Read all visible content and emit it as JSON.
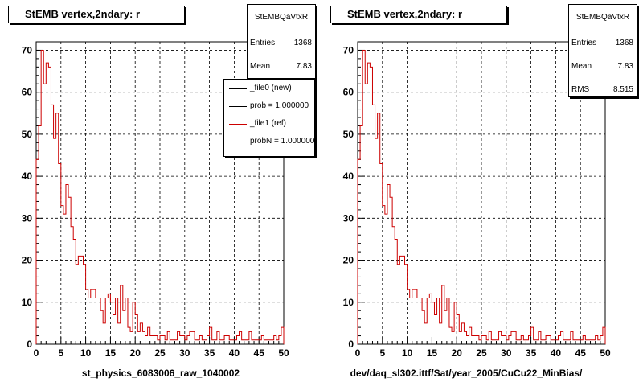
{
  "chart_data": [
    {
      "type": "histogram",
      "title": "StEMB  vertex,2ndary: r",
      "xlabel": "st_physics_6083006_raw_1040002",
      "xlim": [
        0,
        50
      ],
      "ylim": [
        0,
        72
      ],
      "xticks": [
        "0",
        "5",
        "10",
        "15",
        "20",
        "25",
        "30",
        "35",
        "40",
        "45",
        "50"
      ],
      "yticks": [
        "0",
        "10",
        "20",
        "30",
        "40",
        "50",
        "60",
        "70"
      ],
      "grid": true,
      "bin_width": 0.5,
      "series": [
        {
          "name": "_file1 (ref)",
          "color": "#cc0000",
          "values": [
            44,
            52,
            70,
            62,
            67,
            66,
            57,
            49,
            55,
            43,
            33,
            31,
            38,
            35,
            28,
            25,
            19,
            21,
            21,
            19,
            13,
            11,
            13,
            13,
            11,
            11,
            8,
            5,
            11,
            12,
            10,
            7,
            11,
            5,
            14,
            8,
            11,
            4,
            3,
            10,
            7,
            3,
            5,
            3,
            2,
            4,
            2,
            2,
            2,
            1,
            2,
            2,
            1,
            3,
            1,
            1,
            1,
            3,
            2,
            2,
            1,
            2,
            3,
            3,
            1,
            1,
            2,
            1,
            1,
            2,
            4,
            1,
            1,
            3,
            1,
            1,
            2,
            2,
            1,
            1,
            1,
            2,
            3,
            1,
            1,
            1,
            3,
            1,
            1,
            1,
            1,
            2,
            1,
            1,
            1,
            1,
            2,
            1,
            2,
            4
          ]
        }
      ],
      "stats": {
        "name": "StEMBQaVtxR",
        "entries": "1368",
        "mean": "7.83"
      },
      "legend": {
        "placement": "top-right",
        "entries": [
          "_file0 (new)",
          "prob = 1.000000",
          "_file1 (ref)",
          "probN = 1.000000"
        ],
        "colors": [
          "#000000",
          "#000000",
          "#cc0000",
          "#cc0000"
        ]
      }
    },
    {
      "type": "histogram",
      "title": "StEMB  vertex,2ndary: r",
      "xlabel": "dev/daq_sl302.ittf/Sat/year_2005/CuCu22_MinBias/",
      "xlim": [
        0,
        50
      ],
      "ylim": [
        0,
        72
      ],
      "xticks": [
        "0",
        "5",
        "10",
        "15",
        "20",
        "25",
        "30",
        "35",
        "40",
        "45",
        "50"
      ],
      "yticks": [
        "0",
        "10",
        "20",
        "30",
        "40",
        "50",
        "60",
        "70"
      ],
      "grid": true,
      "bin_width": 0.5,
      "series": [
        {
          "name": "",
          "color": "#cc0000",
          "values": [
            44,
            52,
            70,
            62,
            67,
            66,
            57,
            49,
            55,
            43,
            33,
            31,
            38,
            35,
            28,
            25,
            19,
            21,
            21,
            19,
            13,
            11,
            13,
            13,
            11,
            11,
            8,
            5,
            11,
            12,
            10,
            7,
            11,
            5,
            14,
            8,
            11,
            4,
            3,
            10,
            7,
            3,
            5,
            3,
            2,
            4,
            2,
            2,
            2,
            1,
            2,
            2,
            1,
            3,
            1,
            1,
            1,
            3,
            2,
            2,
            1,
            2,
            3,
            3,
            1,
            1,
            2,
            1,
            1,
            2,
            4,
            1,
            1,
            3,
            1,
            1,
            2,
            2,
            1,
            1,
            1,
            2,
            3,
            1,
            1,
            1,
            3,
            1,
            1,
            1,
            1,
            2,
            1,
            1,
            1,
            1,
            2,
            1,
            2,
            4
          ]
        }
      ],
      "stats": {
        "name": "StEMBQaVtxR",
        "entries": "1368",
        "mean": "7.83",
        "rms": "8.515"
      }
    }
  ],
  "labels": {
    "entries": "Entries",
    "mean": "Mean",
    "rms": "RMS"
  }
}
